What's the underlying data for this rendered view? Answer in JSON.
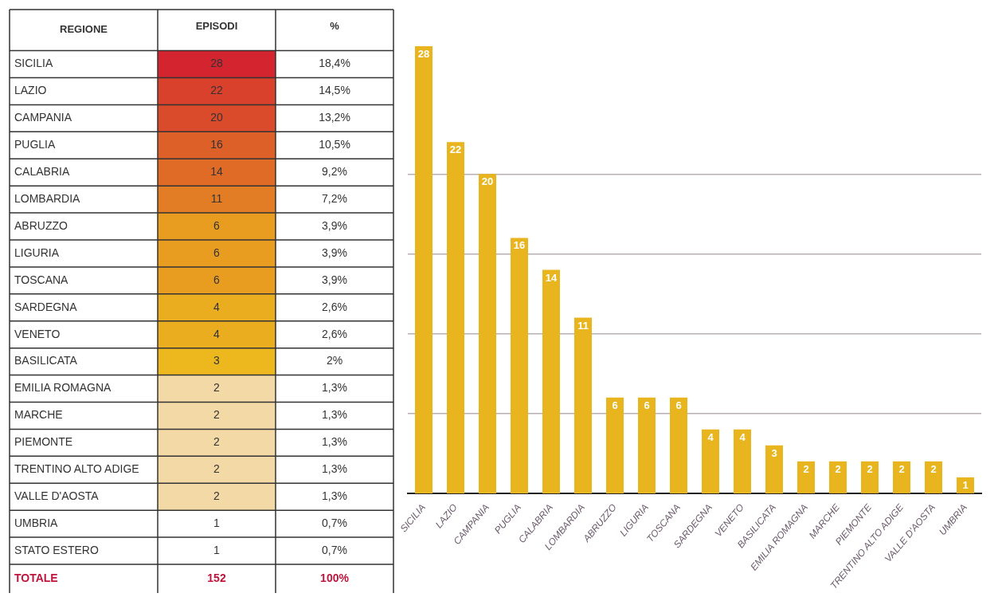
{
  "chart_data": [
    {
      "type": "heatmap",
      "ylabel": "REGIONE",
      "categories": [
        "EPISODI",
        "%"
      ],
      "y_categories": [
        "SICILIA",
        "LAZIO",
        "CAMPANIA",
        "PUGLIA",
        "CALABRIA",
        "LOMBARDIA",
        "ABRUZZO",
        "LIGURIA",
        "TOSCANA",
        "SARDEGNA",
        "VENETO",
        "BASILICATA",
        "EMILIA ROMAGNA",
        "MARCHE",
        "PIEMONTE",
        "TRENTINO ALTO ADIGE",
        "VALLE D'AOSTA",
        "UMBRIA",
        "STATO ESTERO"
      ],
      "cells": [
        [
          28,
          18.4
        ],
        [
          22,
          14.5
        ],
        [
          20,
          13.2
        ],
        [
          16,
          10.5
        ],
        [
          14,
          9.2
        ],
        [
          11,
          7.2
        ],
        [
          6,
          3.9
        ],
        [
          6,
          3.9
        ],
        [
          6,
          3.9
        ],
        [
          4,
          2.6
        ],
        [
          4,
          2.6
        ],
        [
          3,
          2
        ],
        [
          2,
          1.3
        ],
        [
          2,
          1.3
        ],
        [
          2,
          1.3
        ],
        [
          2,
          1.3
        ],
        [
          2,
          1.3
        ],
        [
          1,
          0.7
        ],
        [
          1,
          0.7
        ]
      ],
      "cell_labels": [
        [
          "28",
          "18,4%"
        ],
        [
          "22",
          "14,5%"
        ],
        [
          "20",
          "13,2%"
        ],
        [
          "16",
          "10,5%"
        ],
        [
          "14",
          "9,2%"
        ],
        [
          "11",
          "7,2%"
        ],
        [
          "6",
          "3,9%"
        ],
        [
          "6",
          "3,9%"
        ],
        [
          "6",
          "3,9%"
        ],
        [
          "4",
          "2,6%"
        ],
        [
          "4",
          "2,6%"
        ],
        [
          "3",
          "2%"
        ],
        [
          "2",
          "1,3%"
        ],
        [
          "2",
          "1,3%"
        ],
        [
          "2",
          "1,3%"
        ],
        [
          "2",
          "1,3%"
        ],
        [
          "2",
          "1,3%"
        ],
        [
          "1",
          "0,7%"
        ],
        [
          "1",
          "0,7%"
        ]
      ],
      "annotations": [
        "TOTALE",
        "152",
        "100%"
      ]
    },
    {
      "type": "bar",
      "categories": [
        "SICILIA",
        "LAZIO",
        "CAMPANIA",
        "PUGLIA",
        "CALABRIA",
        "LOMBARDIA",
        "ABRUZZO",
        "LIGURIA",
        "TOSCANA",
        "SARDEGNA",
        "VENETO",
        "BASILICATA",
        "EMILIA ROMAGNA",
        "MARCHE",
        "PIEMONTE",
        "TRENTINO ALTO ADIGE",
        "VALLE D'AOSTA",
        "UMBRIA"
      ],
      "values": [
        28,
        22,
        20,
        16,
        14,
        11,
        6,
        6,
        6,
        4,
        4,
        3,
        2,
        2,
        2,
        2,
        2,
        1
      ],
      "color": "#e8b51e",
      "data_labels": true,
      "grid": "y",
      "tick_labels": "x",
      "yticks": [
        {
          "value": 5,
          "label": null
        },
        {
          "value": 10,
          "label": null
        },
        {
          "value": 15,
          "label": null
        },
        {
          "value": 20,
          "label": null
        }
      ]
    }
  ]
}
